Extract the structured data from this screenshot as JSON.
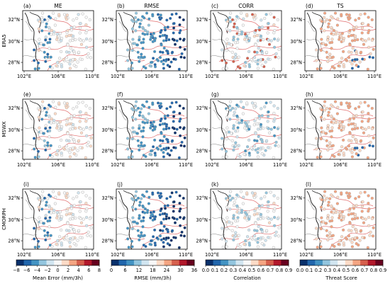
{
  "figure": {
    "panels": [
      {
        "letter": "(a)",
        "metric": "ME",
        "product": "ERA5"
      },
      {
        "letter": "(b)",
        "metric": "RMSE",
        "product": "ERA5"
      },
      {
        "letter": "(c)",
        "metric": "CORR",
        "product": "ERA5"
      },
      {
        "letter": "(d)",
        "metric": "TS",
        "product": "ERA5"
      },
      {
        "letter": "(e)",
        "metric": "",
        "product": "MSWX"
      },
      {
        "letter": "(f)",
        "metric": "",
        "product": "MSWX"
      },
      {
        "letter": "(g)",
        "metric": "",
        "product": "MSWX"
      },
      {
        "letter": "(h)",
        "metric": "",
        "product": "MSWX"
      },
      {
        "letter": "(i)",
        "metric": "",
        "product": "CMORPH"
      },
      {
        "letter": "(j)",
        "metric": "",
        "product": "CMORPH"
      },
      {
        "letter": "(k)",
        "metric": "",
        "product": "CMORPH"
      },
      {
        "letter": "(l)",
        "metric": "",
        "product": "CMORPH"
      }
    ],
    "column_titles": [
      "ME",
      "RMSE",
      "CORR",
      "TS"
    ],
    "row_labels": [
      "ERA5",
      "MSWX",
      "CMORPH"
    ],
    "lat_ticks": [
      "32°N",
      "30°N",
      "28°N"
    ],
    "lon_ticks": [
      "102°E",
      "106°E",
      "110°E"
    ],
    "colorbars": [
      {
        "label": "Mean Error (mm/3h)",
        "ticks": [
          "−8",
          "−6",
          "−4",
          "−2",
          "0",
          "2",
          "4",
          "6",
          "8"
        ],
        "range": [
          -8,
          8
        ],
        "scheme": "diverging"
      },
      {
        "label": "RMSE (mm/3h)",
        "ticks": [
          "0",
          "6",
          "12",
          "18",
          "24",
          "30",
          "36"
        ],
        "range": [
          0,
          36
        ],
        "scheme": "diverging"
      },
      {
        "label": "Correlation",
        "ticks": [
          "0.0",
          "0.1",
          "0.2",
          "0.3",
          "0.4",
          "0.5",
          "0.6",
          "0.7",
          "0.8",
          "0.9"
        ],
        "range": [
          0,
          0.9
        ],
        "scheme": "diverging"
      },
      {
        "label": "Threat Score",
        "ticks": [
          "0.0",
          "0.1",
          "0.2",
          "0.3",
          "0.4",
          "0.5",
          "0.6",
          "0.7",
          "0.8",
          "0.9"
        ],
        "range": [
          0,
          0.9
        ],
        "scheme": "diverging"
      }
    ],
    "colors": {
      "cmap": [
        "#08306b",
        "#2166ac",
        "#4393c3",
        "#92c5de",
        "#d1e5f0",
        "#f7f7f7",
        "#fddbc7",
        "#f4a582",
        "#d6604d",
        "#b2182b",
        "#67001f"
      ],
      "boundary_red": "#e06a6a",
      "boundary_grey": "#9a9a9a",
      "coast_black": "#111111"
    }
  }
}
